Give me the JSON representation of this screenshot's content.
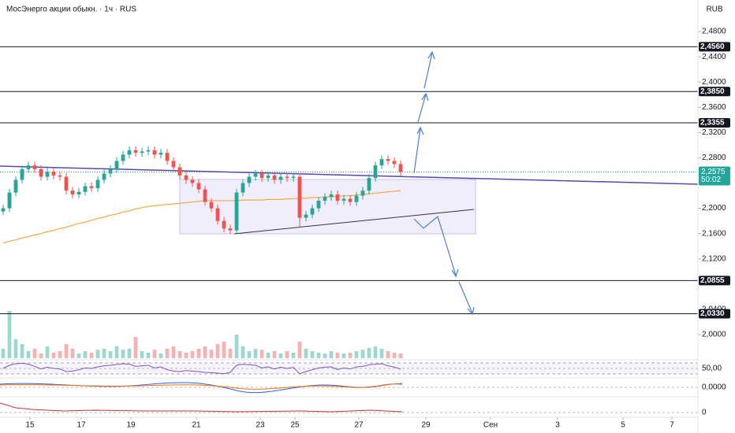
{
  "chart_data": {
    "type": "candlestick",
    "title": "МосЭнерго акции обыкн. · 1ч · RUS",
    "currency": "RUB",
    "up_color": "#26a69a",
    "down_color": "#ef5350",
    "ma_color": "#f5a742",
    "xlim": [
      -0.5,
      110.125
    ],
    "ylim": [
      1.9625,
      2.53
    ],
    "xticks": [
      {
        "value": 4.25,
        "label": "15"
      },
      {
        "value": 12.375,
        "label": "17"
      },
      {
        "value": 20.25,
        "label": "19"
      },
      {
        "value": 30.625,
        "label": "21"
      },
      {
        "value": 40.75,
        "label": "23"
      },
      {
        "value": 46.25,
        "label": "25"
      },
      {
        "value": 56.375,
        "label": "27"
      },
      {
        "value": 67,
        "label": "29"
      },
      {
        "value": 77.25,
        "label": "Сен"
      },
      {
        "value": 87.875,
        "label": "3"
      },
      {
        "value": 98.25,
        "label": "5"
      },
      {
        "value": 106,
        "label": "7"
      }
    ],
    "yticks": [
      {
        "value": 2.48,
        "label": "2,4800"
      },
      {
        "value": 2.44,
        "label": "2,4400"
      },
      {
        "value": 2.4,
        "label": "2,4000"
      },
      {
        "value": 2.36,
        "label": "2,3600"
      },
      {
        "value": 2.32,
        "label": "2,3200"
      },
      {
        "value": 2.28,
        "label": "2,2800"
      },
      {
        "value": 2.2,
        "label": "2,2000"
      },
      {
        "value": 2.16,
        "label": "2,1600"
      },
      {
        "value": 2.12,
        "label": "2,1200"
      },
      {
        "value": 2.04,
        "label": "2,0400"
      },
      {
        "value": 2.0,
        "label": "2,0000"
      }
    ],
    "levels": [
      {
        "value": 2.456,
        "label": "2,4560"
      },
      {
        "value": 2.385,
        "label": "2,3850"
      },
      {
        "value": 2.3355,
        "label": "2,3355"
      },
      {
        "value": 2.0855,
        "label": "2,0855"
      },
      {
        "value": 2.033,
        "label": "2,0330"
      }
    ],
    "last_price": {
      "value": 2.2575,
      "label": "2,2575"
    },
    "countdown": "50:02",
    "open": [
      2.195,
      2.2,
      2.225,
      2.245,
      2.262,
      2.268,
      2.262,
      2.25,
      2.258,
      2.252,
      2.25,
      2.228,
      2.222,
      2.226,
      2.235,
      2.232,
      2.245,
      2.255,
      2.262,
      2.275,
      2.285,
      2.292,
      2.288,
      2.29,
      2.292,
      2.285,
      2.288,
      2.275,
      2.265,
      2.252,
      2.245,
      2.24,
      2.23,
      2.21,
      2.2,
      2.18,
      2.168,
      2.165,
      2.225,
      2.24,
      2.25,
      2.255,
      2.248,
      2.252,
      2.245,
      2.25,
      2.248,
      2.25,
      2.185,
      2.19,
      2.2,
      2.212,
      2.218,
      2.222,
      2.212,
      2.215,
      2.21,
      2.22,
      2.228,
      2.248,
      2.268,
      2.278,
      2.275,
      2.27
    ],
    "high": [
      2.206,
      2.231,
      2.251,
      2.268,
      2.274,
      2.274,
      2.268,
      2.264,
      2.264,
      2.258,
      2.256,
      2.234,
      2.232,
      2.241,
      2.241,
      2.251,
      2.261,
      2.268,
      2.281,
      2.291,
      2.298,
      2.298,
      2.296,
      2.298,
      2.298,
      2.294,
      2.294,
      2.281,
      2.271,
      2.258,
      2.251,
      2.246,
      2.236,
      2.216,
      2.206,
      2.186,
      2.174,
      2.231,
      2.246,
      2.256,
      2.261,
      2.261,
      2.258,
      2.258,
      2.256,
      2.256,
      2.256,
      2.256,
      2.196,
      2.206,
      2.218,
      2.224,
      2.228,
      2.228,
      2.221,
      2.221,
      2.226,
      2.234,
      2.254,
      2.274,
      2.284,
      2.284,
      2.281,
      2.276
    ],
    "low": [
      2.189,
      2.194,
      2.219,
      2.239,
      2.256,
      2.256,
      2.244,
      2.244,
      2.246,
      2.244,
      2.222,
      2.216,
      2.216,
      2.22,
      2.226,
      2.226,
      2.239,
      2.249,
      2.256,
      2.269,
      2.279,
      2.282,
      2.282,
      2.284,
      2.279,
      2.279,
      2.269,
      2.259,
      2.246,
      2.239,
      2.234,
      2.224,
      2.204,
      2.194,
      2.174,
      2.162,
      2.159,
      2.159,
      2.219,
      2.234,
      2.244,
      2.242,
      2.242,
      2.239,
      2.239,
      2.242,
      2.242,
      2.17,
      2.179,
      2.184,
      2.194,
      2.206,
      2.212,
      2.206,
      2.206,
      2.204,
      2.204,
      2.214,
      2.222,
      2.242,
      2.262,
      2.269,
      2.264,
      2.2515
    ],
    "close": [
      2.2,
      2.225,
      2.245,
      2.262,
      2.268,
      2.262,
      2.25,
      2.258,
      2.252,
      2.25,
      2.228,
      2.222,
      2.226,
      2.235,
      2.232,
      2.245,
      2.255,
      2.262,
      2.275,
      2.285,
      2.292,
      2.288,
      2.29,
      2.292,
      2.285,
      2.288,
      2.275,
      2.265,
      2.252,
      2.245,
      2.24,
      2.23,
      2.21,
      2.2,
      2.18,
      2.168,
      2.165,
      2.225,
      2.24,
      2.25,
      2.255,
      2.248,
      2.252,
      2.245,
      2.25,
      2.248,
      2.25,
      2.185,
      2.19,
      2.2,
      2.212,
      2.218,
      2.222,
      2.212,
      2.215,
      2.21,
      2.22,
      2.228,
      2.248,
      2.268,
      2.278,
      2.275,
      2.27,
      2.2575
    ],
    "ma": [
      2.145,
      2.148,
      2.15,
      2.153,
      2.155,
      2.158,
      2.16,
      2.163,
      2.165,
      2.168,
      2.17,
      2.173,
      2.176,
      2.178,
      2.181,
      2.184,
      2.186,
      2.189,
      2.191,
      2.194,
      2.196,
      2.199,
      2.201,
      2.203,
      2.204,
      2.205,
      2.206,
      2.207,
      2.208,
      2.209,
      2.21,
      2.211,
      2.212,
      2.212,
      2.212,
      2.212,
      2.212,
      2.212,
      2.213,
      2.213,
      2.213,
      2.213,
      2.214,
      2.214,
      2.214,
      2.215,
      2.215,
      2.216,
      2.216,
      2.217,
      2.217,
      2.218,
      2.218,
      2.219,
      2.22,
      2.22,
      2.221,
      2.222,
      2.223,
      2.224,
      2.225,
      2.226,
      2.227,
      2.228
    ],
    "volume": [
      20,
      100,
      40,
      30,
      15,
      20,
      10,
      25,
      12,
      15,
      30,
      20,
      10,
      15,
      12,
      18,
      20,
      15,
      25,
      18,
      20,
      45,
      15,
      12,
      18,
      10,
      20,
      25,
      15,
      12,
      15,
      20,
      25,
      18,
      30,
      35,
      20,
      50,
      25,
      15,
      20,
      18,
      12,
      15,
      10,
      15,
      12,
      35,
      20,
      15,
      12,
      10,
      15,
      12,
      10,
      12,
      15,
      18,
      22,
      25,
      20,
      15,
      12,
      10
    ],
    "rsi": [
      50,
      62,
      68,
      70,
      66,
      58,
      48,
      55,
      50,
      48,
      38,
      40,
      45,
      52,
      50,
      56,
      60,
      62,
      65,
      68,
      66,
      58,
      60,
      62,
      52,
      56,
      45,
      40,
      38,
      42,
      40,
      38,
      35,
      34,
      32,
      30,
      35,
      62,
      66,
      64,
      62,
      52,
      56,
      48,
      55,
      50,
      54,
      30,
      38,
      45,
      52,
      55,
      56,
      46,
      52,
      48,
      56,
      58,
      64,
      66,
      68,
      60,
      55,
      48
    ],
    "rsi_lim": [
      20,
      80
    ],
    "rsi_tick": {
      "value": 50,
      "label": "50,00"
    },
    "macd_tick": "0,0000",
    "third_tick": "0"
  }
}
